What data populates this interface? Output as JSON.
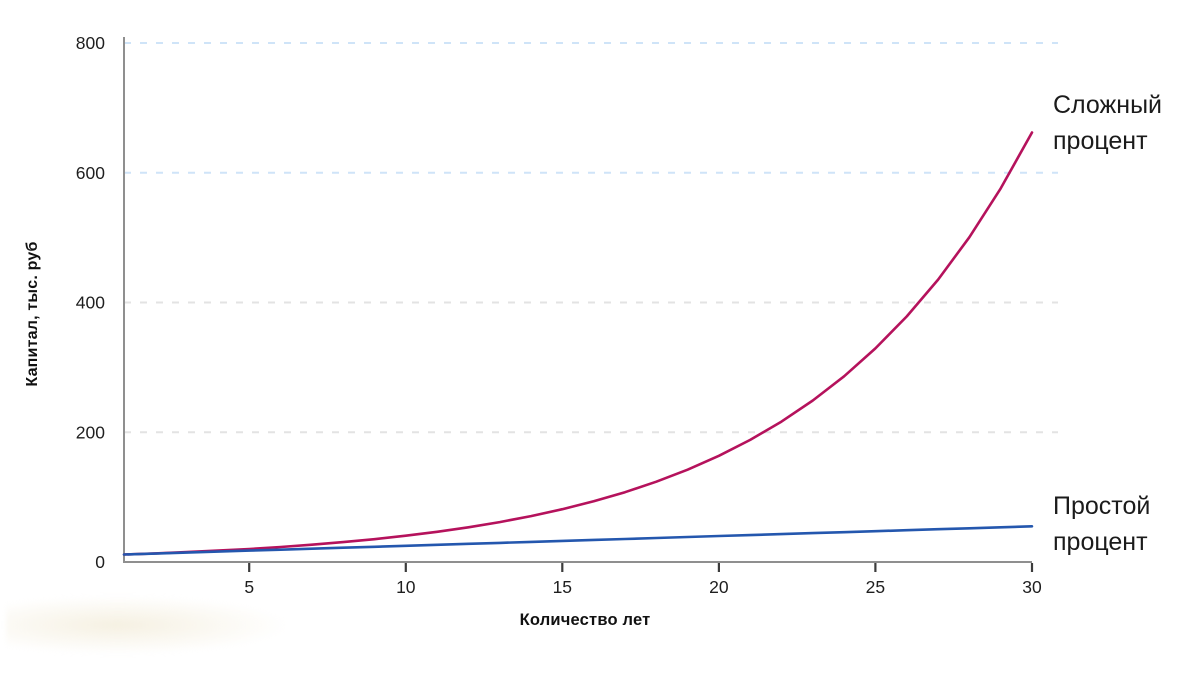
{
  "chart_data": {
    "type": "line",
    "title": "",
    "xlabel": "Количество лет",
    "ylabel": "Капитал, тыс. руб",
    "x_range": [
      1,
      30
    ],
    "y_range": [
      0,
      800
    ],
    "x_ticks": [
      5,
      10,
      15,
      20,
      25,
      30
    ],
    "y_ticks": [
      0,
      200,
      400,
      600,
      800
    ],
    "grid": "horizontal-dashed",
    "legend_position": "labels-at-line-ends-right",
    "x": [
      1,
      2,
      3,
      4,
      5,
      6,
      7,
      8,
      9,
      10,
      11,
      12,
      13,
      14,
      15,
      16,
      17,
      18,
      19,
      20,
      21,
      22,
      23,
      24,
      25,
      26,
      27,
      28,
      29,
      30
    ],
    "series": [
      {
        "id": "compound",
        "name": "Сложный процент",
        "color": "#b5125c",
        "values": [
          11.5,
          13.2,
          15.2,
          17.5,
          20.1,
          23.1,
          26.6,
          30.6,
          35.2,
          40.5,
          46.5,
          53.5,
          61.5,
          70.8,
          81.4,
          93.6,
          107.6,
          123.8,
          142.3,
          163.7,
          188.2,
          216.4,
          248.9,
          286.3,
          329.2,
          378.6,
          435.3,
          500.7,
          575.8,
          662.1
        ]
      },
      {
        "id": "simple",
        "name": "Простой процент",
        "color": "#2457ae",
        "values": [
          11.5,
          13.0,
          14.5,
          16.0,
          17.5,
          19.0,
          20.5,
          22.0,
          23.5,
          25.0,
          26.5,
          28.0,
          29.5,
          31.0,
          32.5,
          34.0,
          35.5,
          37.0,
          38.5,
          40.0,
          41.5,
          43.0,
          44.5,
          46.0,
          47.5,
          49.0,
          50.5,
          52.0,
          53.5,
          55.0
        ]
      }
    ]
  },
  "colors": {
    "background": "#ffffff",
    "compound_line": "#b5125c",
    "simple_line": "#2457ae",
    "grid_blue": "#cfe4f8",
    "grid_gray": "#e3e3e3",
    "axis": "#8f8f8f",
    "tick": "#3c3c3c",
    "text": "#1e1e1e"
  }
}
